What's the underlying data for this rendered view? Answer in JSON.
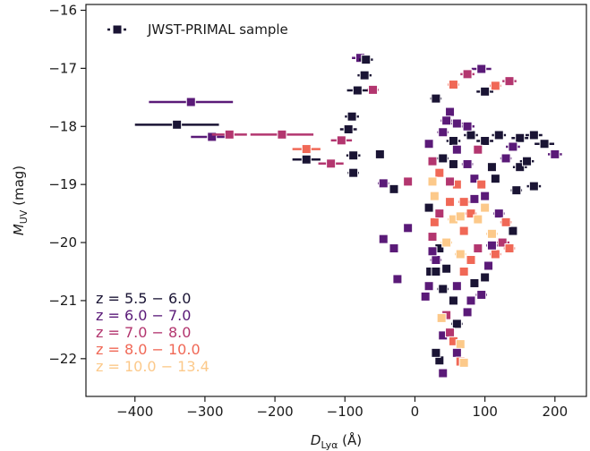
{
  "chart_data": {
    "type": "scatter",
    "xlabel_main": "D",
    "xlabel_sub": "Lyα",
    "xlabel_unit": " (Å)",
    "ylabel_main": "M",
    "ylabel_sub": "UV",
    "ylabel_unit": " (mag)",
    "xlim": [
      -470,
      245
    ],
    "ylim": [
      -22.65,
      -15.9
    ],
    "y_inverted": true,
    "x_ticks": [
      -400,
      -300,
      -200,
      -100,
      0,
      100,
      200
    ],
    "x_tick_labels": [
      "−400",
      "−300",
      "−200",
      "−100",
      "0",
      "100",
      "200"
    ],
    "y_ticks": [
      -16,
      -17,
      -18,
      -19,
      -20,
      -21,
      -22
    ],
    "y_tick_labels": [
      "−16",
      "−17",
      "−18",
      "−19",
      "−20",
      "−21",
      "−22"
    ],
    "legend": {
      "placement": "top-left",
      "label": "JWST-PRIMAL sample",
      "color": "#1a1434"
    },
    "groups": [
      {
        "label": "z = 5.5 − 6.0",
        "color": "#1a1434"
      },
      {
        "label": "z = 6.0 − 7.0",
        "color": "#5a1a78"
      },
      {
        "label": "z = 7.0 − 8.0",
        "color": "#b3366f"
      },
      {
        "label": "z = 8.0 − 10.0",
        "color": "#f06856"
      },
      {
        "label": "z = 10.0 − 13.4",
        "color": "#fcc98a"
      }
    ],
    "groups_placement": "bottom-left",
    "points": [
      [
        -340,
        -17.97,
        60,
        0
      ],
      [
        -320,
        -17.58,
        60,
        1
      ],
      [
        -290,
        -18.18,
        30,
        1
      ],
      [
        -265,
        -18.14,
        25,
        2
      ],
      [
        -190,
        -18.14,
        45,
        2
      ],
      [
        -155,
        -18.39,
        20,
        3
      ],
      [
        -155,
        -18.57,
        20,
        0
      ],
      [
        -120,
        -18.64,
        18,
        2
      ],
      [
        -105,
        -18.24,
        15,
        2
      ],
      [
        -95,
        -18.05,
        12,
        0
      ],
      [
        -88,
        -18.5,
        10,
        0
      ],
      [
        -90,
        -17.83,
        10,
        0
      ],
      [
        -88,
        -18.8,
        8,
        0
      ],
      [
        -78,
        -16.82,
        12,
        1
      ],
      [
        -70,
        -16.85,
        10,
        0
      ],
      [
        -72,
        -17.12,
        10,
        0
      ],
      [
        -82,
        -17.38,
        15,
        0
      ],
      [
        -60,
        -17.37,
        8,
        2
      ],
      [
        -50,
        -18.48,
        6,
        0
      ],
      [
        -45,
        -18.98,
        8,
        1
      ],
      [
        -30,
        -19.08,
        6,
        0
      ],
      [
        -45,
        -19.94,
        6,
        1
      ],
      [
        -30,
        -20.1,
        6,
        1
      ],
      [
        -25,
        -20.63,
        4,
        1
      ],
      [
        -10,
        -18.95,
        4,
        2
      ],
      [
        -10,
        -19.75,
        4,
        1
      ],
      [
        20,
        -18.3,
        6,
        1
      ],
      [
        30,
        -17.52,
        8,
        0
      ],
      [
        55,
        -18.25,
        10,
        0
      ],
      [
        80,
        -18.15,
        10,
        0
      ],
      [
        100,
        -18.25,
        12,
        0
      ],
      [
        120,
        -18.15,
        10,
        0
      ],
      [
        150,
        -18.2,
        12,
        0
      ],
      [
        170,
        -18.15,
        12,
        0
      ],
      [
        185,
        -18.3,
        14,
        0
      ],
      [
        200,
        -18.48,
        10,
        1
      ],
      [
        170,
        -19.03,
        10,
        0
      ],
      [
        95,
        -17.01,
        14,
        1
      ],
      [
        75,
        -17.1,
        10,
        2
      ],
      [
        100,
        -17.4,
        12,
        0
      ],
      [
        115,
        -17.3,
        8,
        3
      ],
      [
        135,
        -17.22,
        10,
        2
      ],
      [
        55,
        -17.28,
        8,
        3
      ],
      [
        50,
        -17.75,
        6,
        1
      ],
      [
        45,
        -17.9,
        8,
        1
      ],
      [
        40,
        -18.55,
        8,
        0
      ],
      [
        35,
        -18.8,
        6,
        3
      ],
      [
        25,
        -18.95,
        6,
        4
      ],
      [
        20,
        -19.4,
        6,
        0
      ],
      [
        28,
        -19.65,
        6,
        3
      ],
      [
        25,
        -19.9,
        6,
        2
      ],
      [
        35,
        -20.1,
        6,
        0
      ],
      [
        30,
        -20.3,
        8,
        1
      ],
      [
        22,
        -20.5,
        6,
        0
      ],
      [
        20,
        -20.75,
        6,
        1
      ],
      [
        15,
        -20.93,
        4,
        1
      ],
      [
        30,
        -20.5,
        6,
        0
      ],
      [
        40,
        -20.8,
        8,
        0
      ],
      [
        60,
        -19.0,
        6,
        3
      ],
      [
        70,
        -19.3,
        8,
        3
      ],
      [
        80,
        -19.5,
        8,
        3
      ],
      [
        55,
        -19.6,
        8,
        4
      ],
      [
        45,
        -20.0,
        8,
        4
      ],
      [
        65,
        -20.2,
        8,
        4
      ],
      [
        90,
        -19.6,
        6,
        4
      ],
      [
        110,
        -19.85,
        8,
        4
      ],
      [
        125,
        -20.0,
        10,
        2
      ],
      [
        135,
        -20.1,
        8,
        3
      ],
      [
        140,
        -19.8,
        6,
        0
      ],
      [
        100,
        -19.2,
        6,
        1
      ],
      [
        120,
        -19.5,
        8,
        1
      ],
      [
        85,
        -18.9,
        6,
        1
      ],
      [
        110,
        -18.7,
        6,
        0
      ],
      [
        130,
        -18.55,
        8,
        1
      ],
      [
        145,
        -19.1,
        8,
        0
      ],
      [
        150,
        -18.7,
        10,
        0
      ],
      [
        60,
        -18.4,
        6,
        1
      ],
      [
        75,
        -18.65,
        8,
        1
      ],
      [
        90,
        -18.4,
        6,
        2
      ],
      [
        70,
        -20.5,
        6,
        3
      ],
      [
        85,
        -20.7,
        6,
        0
      ],
      [
        95,
        -20.9,
        8,
        1
      ],
      [
        55,
        -21.0,
        6,
        0
      ],
      [
        75,
        -21.2,
        6,
        1
      ],
      [
        45,
        -21.25,
        6,
        2
      ],
      [
        60,
        -21.4,
        8,
        0
      ],
      [
        40,
        -21.6,
        4,
        1
      ],
      [
        50,
        -21.55,
        4,
        2
      ],
      [
        55,
        -21.7,
        4,
        3
      ],
      [
        65,
        -21.75,
        4,
        4
      ],
      [
        60,
        -21.9,
        4,
        1
      ],
      [
        65,
        -22.05,
        4,
        3
      ],
      [
        70,
        -22.07,
        4,
        4
      ],
      [
        35,
        -22.03,
        4,
        0
      ],
      [
        40,
        -22.25,
        4,
        1
      ],
      [
        38,
        -21.3,
        4,
        4
      ],
      [
        30,
        -21.9,
        4,
        0
      ],
      [
        80,
        -20.3,
        6,
        3
      ],
      [
        90,
        -20.1,
        6,
        2
      ],
      [
        105,
        -20.4,
        6,
        1
      ],
      [
        115,
        -20.2,
        8,
        3
      ],
      [
        50,
        -19.3,
        6,
        3
      ],
      [
        35,
        -19.5,
        6,
        2
      ],
      [
        95,
        -19.0,
        6,
        3
      ],
      [
        115,
        -18.9,
        6,
        0
      ],
      [
        140,
        -18.35,
        10,
        1
      ],
      [
        160,
        -18.6,
        10,
        0
      ],
      [
        50,
        -18.95,
        6,
        2
      ],
      [
        75,
        -18.0,
        10,
        1
      ],
      [
        60,
        -17.95,
        8,
        1
      ],
      [
        40,
        -18.1,
        8,
        1
      ],
      [
        25,
        -18.6,
        6,
        2
      ],
      [
        28,
        -19.2,
        6,
        4
      ],
      [
        60,
        -20.75,
        6,
        1
      ],
      [
        80,
        -21.0,
        6,
        1
      ],
      [
        100,
        -20.6,
        6,
        0
      ],
      [
        110,
        -20.05,
        8,
        1
      ],
      [
        70,
        -19.8,
        6,
        3
      ],
      [
        45,
        -20.45,
        6,
        0
      ],
      [
        25,
        -20.15,
        6,
        1
      ],
      [
        55,
        -18.65,
        6,
        0
      ],
      [
        130,
        -19.65,
        8,
        3
      ],
      [
        100,
        -19.4,
        6,
        4
      ],
      [
        65,
        -19.55,
        6,
        4
      ],
      [
        85,
        -19.25,
        6,
        1
      ]
    ]
  }
}
